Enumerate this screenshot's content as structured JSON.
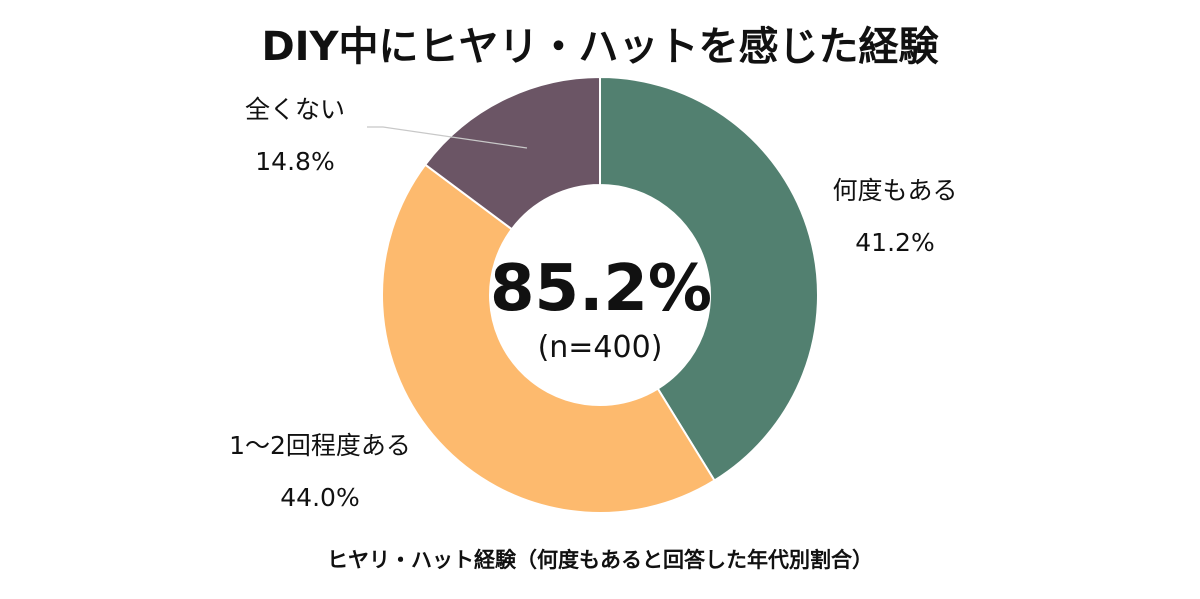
{
  "chart_data": {
    "type": "pie",
    "title": "DIY中にヒヤリ・ハットを感じた経験",
    "subtitle": "ヒヤリ・ハット経験（何度もあると回答した年代別割合）",
    "center_value": "85.2%",
    "center_note": "(n=400)",
    "categories": [
      "何度もある",
      "1～2回程度ある",
      "全くない"
    ],
    "values": [
      41.2,
      44.0,
      14.8
    ],
    "value_labels": [
      "41.2%",
      "44.0%",
      "14.8%"
    ],
    "colors": [
      "#528070",
      "#FDBA6E",
      "#6B5565"
    ],
    "donut": true
  }
}
